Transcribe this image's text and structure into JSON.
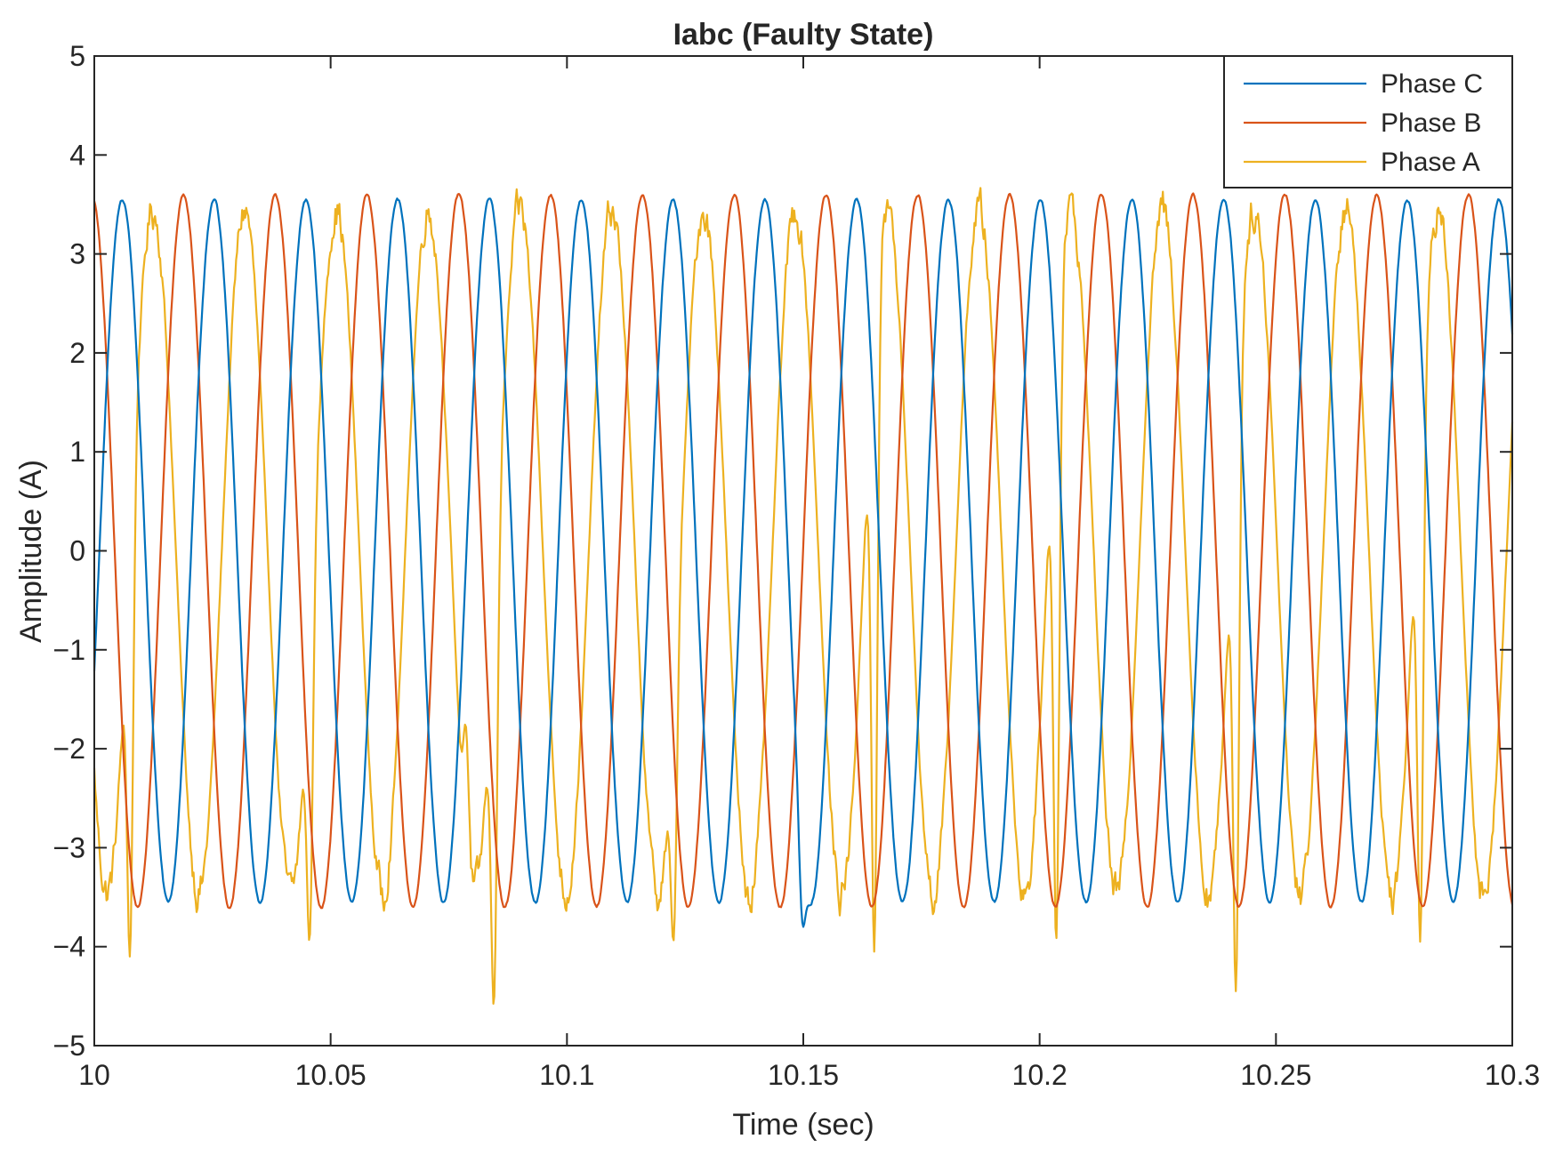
{
  "chart_data": {
    "type": "line",
    "title": "Iabc (Faulty State)",
    "xlabel": "Time (sec)",
    "ylabel": "Amplitude (A)",
    "xlim": [
      10,
      10.3
    ],
    "ylim": [
      -5,
      5
    ],
    "xticks": [
      10,
      10.05,
      10.1,
      10.15,
      10.2,
      10.25,
      10.3
    ],
    "xtick_labels": [
      "10",
      "10.05",
      "10.1",
      "10.15",
      "10.2",
      "10.25",
      "10.3"
    ],
    "yticks": [
      -5,
      -4,
      -3,
      -2,
      -1,
      0,
      1,
      2,
      3,
      4,
      5
    ],
    "ytick_labels": [
      "−5",
      "−4",
      "−3",
      "−2",
      "−1",
      "0",
      "1",
      "2",
      "3",
      "4",
      "5"
    ],
    "grid": false,
    "legend_position": "top-right",
    "legend_order": [
      "Phase C",
      "Phase B",
      "Phase A"
    ],
    "series": [
      {
        "name": "Phase A",
        "color": "#EDB120",
        "amplitude": 3.45,
        "frequency_hz": 51.5,
        "phase_deg": 220,
        "noise": 0.22,
        "spikes": [
          {
            "x": 10.0075,
            "y": -4.1
          },
          {
            "x": 10.0455,
            "y": -3.95
          },
          {
            "x": 10.0845,
            "y": -4.6
          },
          {
            "x": 10.0785,
            "y": -1.75
          },
          {
            "x": 10.1225,
            "y": -3.95
          },
          {
            "x": 10.165,
            "y": -4.05
          },
          {
            "x": 10.2035,
            "y": -3.95
          },
          {
            "x": 10.2415,
            "y": -4.45
          },
          {
            "x": 10.2805,
            "y": -3.95
          }
        ]
      },
      {
        "name": "Phase B",
        "color": "#D95319",
        "amplitude": 3.6,
        "frequency_hz": 51.5,
        "phase_deg": 100,
        "noise": 0.03,
        "spikes": []
      },
      {
        "name": "Phase C",
        "color": "#0072BD",
        "amplitude": 3.55,
        "frequency_hz": 51.5,
        "phase_deg": -20,
        "noise": 0.03,
        "spikes": [
          {
            "x": 10.15,
            "y": -3.8
          }
        ]
      }
    ]
  }
}
